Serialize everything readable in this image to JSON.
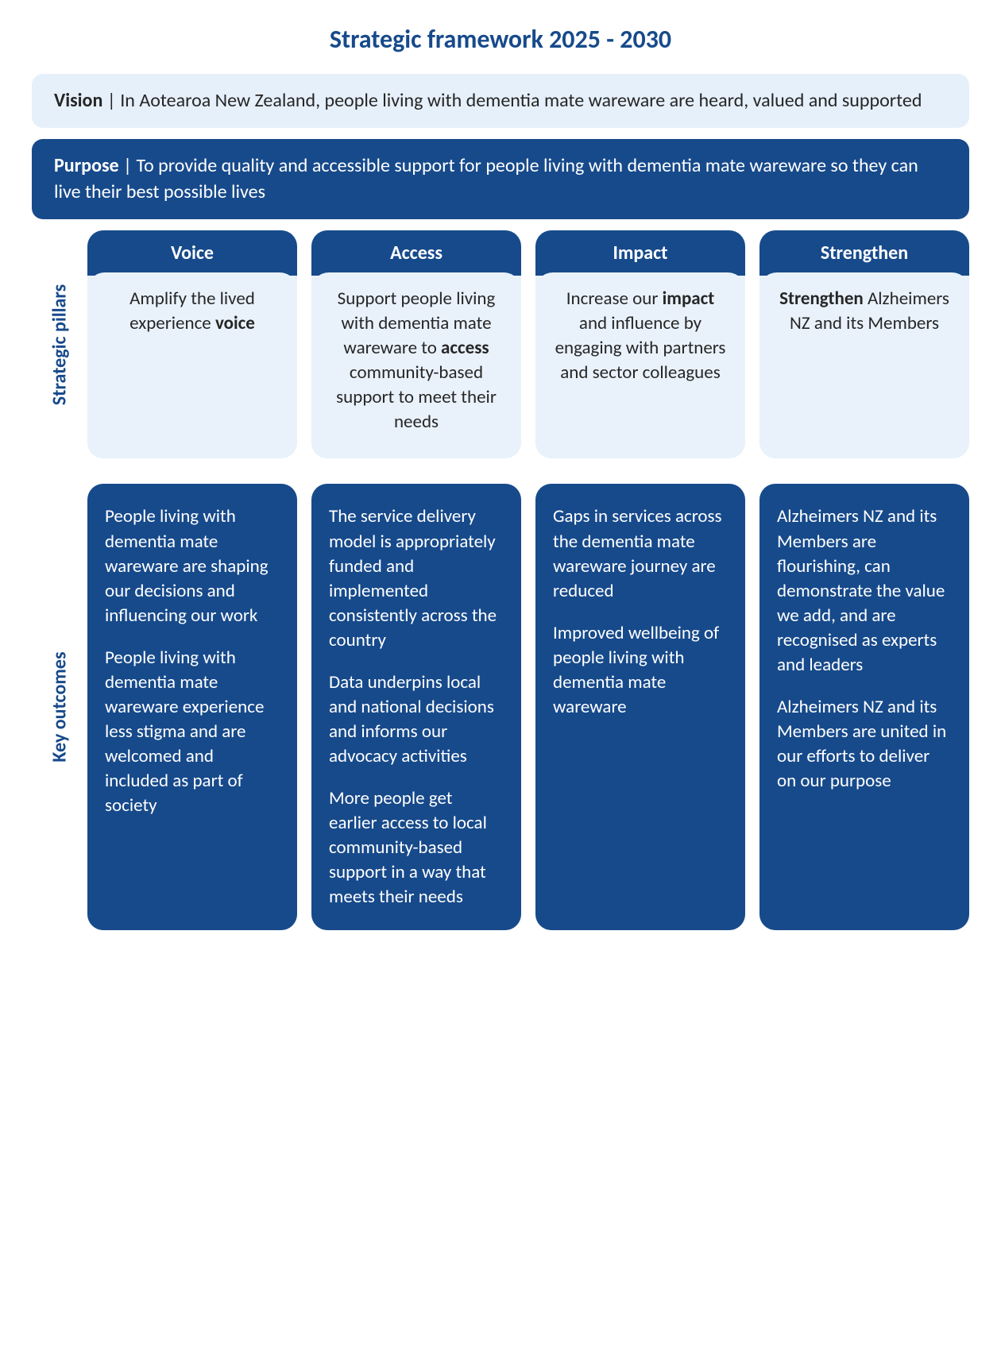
{
  "colors": {
    "brand_dark": "#174a8b",
    "brand_light": "#e6f0fa",
    "pillar_light": "#e9f2fb",
    "text_dark": "#262626",
    "white": "#ffffff"
  },
  "title": "Strategic framework 2025 - 2030",
  "vision": {
    "label": "Vision",
    "sep": " | ",
    "text": "In Aotearoa New Zealand, people living with dementia mate wareware are heard, valued and supported"
  },
  "purpose": {
    "label": "Purpose",
    "sep": " | ",
    "text": "To provide quality and accessible support for people living with dementia mate wareware so they can live their best possible lives"
  },
  "side_labels": {
    "pillars": "Strategic pillars",
    "outcomes": "Key outcomes"
  },
  "pillars": [
    {
      "header": "Voice",
      "body_pre": "Amplify the lived experience ",
      "body_bold": "voice",
      "body_post": ""
    },
    {
      "header": "Access",
      "body_pre": "Support people living with dementia mate wareware to ",
      "body_bold": "access",
      "body_post": " community-based support to meet their needs"
    },
    {
      "header": "Impact",
      "body_pre": "Increase our ",
      "body_bold": "impact",
      "body_post": " and influence by engaging with partners and sector colleagues"
    },
    {
      "header": "Strengthen",
      "body_pre": "",
      "body_bold": "Strengthen",
      "body_post": " Alzheimers NZ and its Members"
    }
  ],
  "outcomes": [
    {
      "paras": [
        "People living with dementia mate wareware are shaping our decisions and influencing our work",
        "People living with dementia mate wareware experience less stigma and are welcomed and included as part of society"
      ]
    },
    {
      "paras": [
        "The service delivery model is appropriately funded and implemented consistently across the country",
        "Data underpins local and national decisions and informs our advocacy activities",
        "More people get earlier access to local community-based support in a way that meets their needs"
      ]
    },
    {
      "paras": [
        "Gaps in services across the dementia mate wareware journey are reduced",
        "Improved wellbeing of people living with dementia mate wareware"
      ]
    },
    {
      "paras": [
        "Alzheimers NZ and its Members are flourishing, can demonstrate the value we add, and are recognised as experts and leaders",
        "Alzheimers NZ and its Members are united in our efforts to deliver on our purpose"
      ]
    }
  ]
}
